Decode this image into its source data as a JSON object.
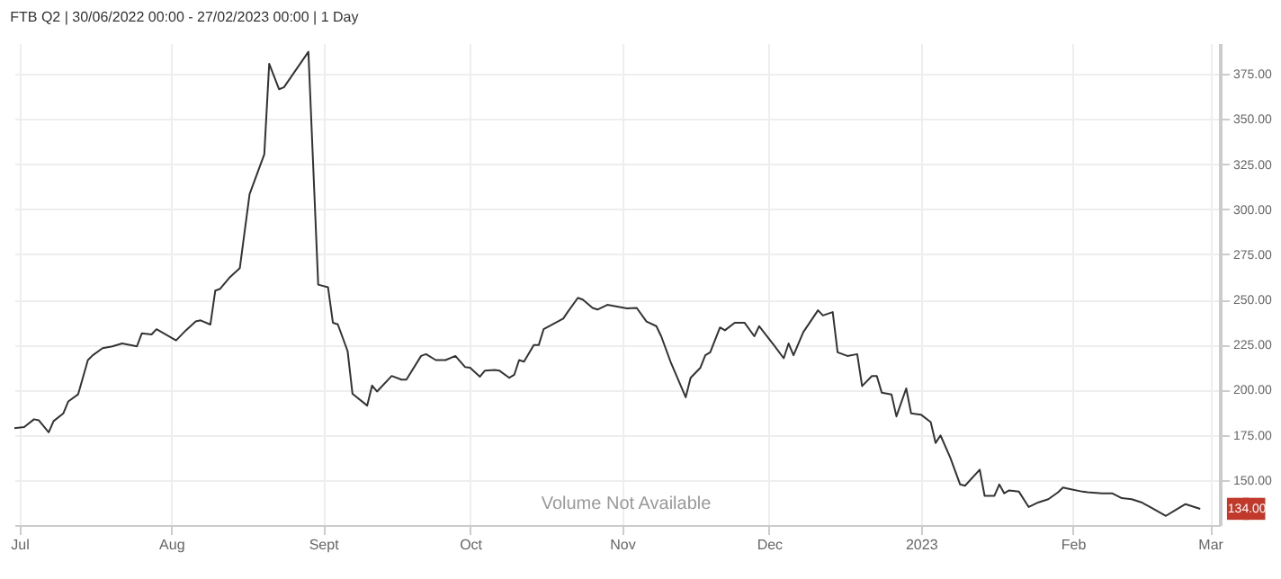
{
  "chart_data": {
    "type": "line",
    "title": "FTB Q2 | 30/06/2022 00:00 - 27/02/2023 00:00 | 1 Day",
    "x": [
      "2022-06-30",
      "2022-07-02",
      "2022-07-04",
      "2022-07-05",
      "2022-07-07",
      "2022-07-08",
      "2022-07-10",
      "2022-07-11",
      "2022-07-13",
      "2022-07-15",
      "2022-07-16",
      "2022-07-18",
      "2022-07-20",
      "2022-07-22",
      "2022-07-25",
      "2022-07-26",
      "2022-07-28",
      "2022-07-29",
      "2022-08-02",
      "2022-08-04",
      "2022-08-06",
      "2022-08-07",
      "2022-08-09",
      "2022-08-10",
      "2022-08-11",
      "2022-08-13",
      "2022-08-15",
      "2022-08-17",
      "2022-08-20",
      "2022-08-21",
      "2022-08-23",
      "2022-08-24",
      "2022-08-29",
      "2022-08-31",
      "2022-09-02",
      "2022-09-03",
      "2022-09-04",
      "2022-09-06",
      "2022-09-07",
      "2022-09-10",
      "2022-09-11",
      "2022-09-12",
      "2022-09-15",
      "2022-09-17",
      "2022-09-18",
      "2022-09-21",
      "2022-09-22",
      "2022-09-24",
      "2022-09-26",
      "2022-09-28",
      "2022-09-30",
      "2022-10-01",
      "2022-10-03",
      "2022-10-04",
      "2022-10-06",
      "2022-10-07",
      "2022-10-09",
      "2022-10-10",
      "2022-10-11",
      "2022-10-12",
      "2022-10-14",
      "2022-10-15",
      "2022-10-16",
      "2022-10-20",
      "2022-10-21",
      "2022-10-23",
      "2022-10-24",
      "2022-10-26",
      "2022-10-27",
      "2022-10-29",
      "2022-11-02",
      "2022-11-04",
      "2022-11-06",
      "2022-11-08",
      "2022-11-09",
      "2022-11-11",
      "2022-11-14",
      "2022-11-15",
      "2022-11-17",
      "2022-11-18",
      "2022-11-19",
      "2022-11-21",
      "2022-11-22",
      "2022-11-24",
      "2022-11-26",
      "2022-11-28",
      "2022-11-29",
      "2022-12-02",
      "2022-12-04",
      "2022-12-05",
      "2022-12-06",
      "2022-12-08",
      "2022-12-11",
      "2022-12-12",
      "2022-12-14",
      "2022-12-15",
      "2022-12-17",
      "2022-12-19",
      "2022-12-20",
      "2022-12-22",
      "2022-12-23",
      "2022-12-24",
      "2022-12-26",
      "2022-12-27",
      "2022-12-29",
      "2022-12-30",
      "2023-01-01",
      "2023-01-03",
      "2023-01-04",
      "2023-01-05",
      "2023-01-07",
      "2023-01-09",
      "2023-01-10",
      "2023-01-13",
      "2023-01-14",
      "2023-01-16",
      "2023-01-17",
      "2023-01-18",
      "2023-01-19",
      "2023-01-21",
      "2023-01-23",
      "2023-01-25",
      "2023-01-27",
      "2023-01-29",
      "2023-01-30",
      "2023-01-31",
      "2023-02-03",
      "2023-02-04",
      "2023-02-07",
      "2023-02-09",
      "2023-02-11",
      "2023-02-13",
      "2023-02-15",
      "2023-02-17",
      "2023-02-20",
      "2023-02-22",
      "2023-02-23",
      "2023-02-24",
      "2023-02-27"
    ],
    "values": [
      178.7,
      179.3,
      183.6,
      183.0,
      176.4,
      182.6,
      186.9,
      193.5,
      197.4,
      216.4,
      219.1,
      223.0,
      224.0,
      225.6,
      224.0,
      231.2,
      230.6,
      233.5,
      227.3,
      232.9,
      237.8,
      238.4,
      236.1,
      254.9,
      255.9,
      262.4,
      267.3,
      308.4,
      330.4,
      380.6,
      366.5,
      367.5,
      387.2,
      258.2,
      256.8,
      237.1,
      236.2,
      221.4,
      197.7,
      191.2,
      202.3,
      199.0,
      207.6,
      205.6,
      205.6,
      218.7,
      219.7,
      216.4,
      216.4,
      218.7,
      212.5,
      212.2,
      207.2,
      210.5,
      210.9,
      210.5,
      206.6,
      208.2,
      216.4,
      215.5,
      224.7,
      224.7,
      233.5,
      239.4,
      243.4,
      250.9,
      249.9,
      245.3,
      244.4,
      247.0,
      245.0,
      245.3,
      237.8,
      235.2,
      229.6,
      214.8,
      195.8,
      206.6,
      212.2,
      219.1,
      220.7,
      234.5,
      232.9,
      237.1,
      237.1,
      229.6,
      235.2,
      224.7,
      217.4,
      225.6,
      219.1,
      231.9,
      244.0,
      241.1,
      243.0,
      220.7,
      218.7,
      219.7,
      202.0,
      207.6,
      207.6,
      198.4,
      197.4,
      185.2,
      200.7,
      186.9,
      186.2,
      182.0,
      170.5,
      174.7,
      162.3,
      147.5,
      146.8,
      155.7,
      141.2,
      141.2,
      147.5,
      142.6,
      144.2,
      143.5,
      135.0,
      137.6,
      139.3,
      143.2,
      145.8,
      145.2,
      143.5,
      143.2,
      142.6,
      142.6,
      139.9,
      139.3,
      137.6,
      134.7,
      130.1,
      133.4,
      135.0,
      136.6,
      134.0
    ],
    "color": "#333333",
    "xlim": [
      "2022-06-30",
      "2023-03-03"
    ],
    "xticks": [
      {
        "value": "2022-07-01",
        "label": "Jul"
      },
      {
        "value": "2022-08-01",
        "label": "Aug"
      },
      {
        "value": "2022-09-01",
        "label": "Sept"
      },
      {
        "value": "2022-10-01",
        "label": "Oct"
      },
      {
        "value": "2022-11-01",
        "label": "Nov"
      },
      {
        "value": "2022-12-01",
        "label": "Dec"
      },
      {
        "value": "2023-01-01",
        "label": "2023"
      },
      {
        "value": "2023-02-01",
        "label": "Feb"
      },
      {
        "value": "2023-03-01",
        "label": "Mar"
      }
    ],
    "ylim": [
      125,
      392
    ],
    "yticks": [
      {
        "value": 150,
        "label": "150.00"
      },
      {
        "value": 175,
        "label": "175.00"
      },
      {
        "value": 200,
        "label": "200.00"
      },
      {
        "value": 225,
        "label": "225.00"
      },
      {
        "value": 250,
        "label": "250.00"
      },
      {
        "value": 275,
        "label": "275.00"
      },
      {
        "value": 300,
        "label": "300.00"
      },
      {
        "value": 325,
        "label": "325.00"
      },
      {
        "value": 350,
        "label": "350.00"
      },
      {
        "value": 375,
        "label": "375.00"
      }
    ],
    "grid": true,
    "annotations": [
      "Volume Not Available",
      {
        "text": "134.00",
        "x": "2023-02-27",
        "y": 134
      }
    ]
  }
}
